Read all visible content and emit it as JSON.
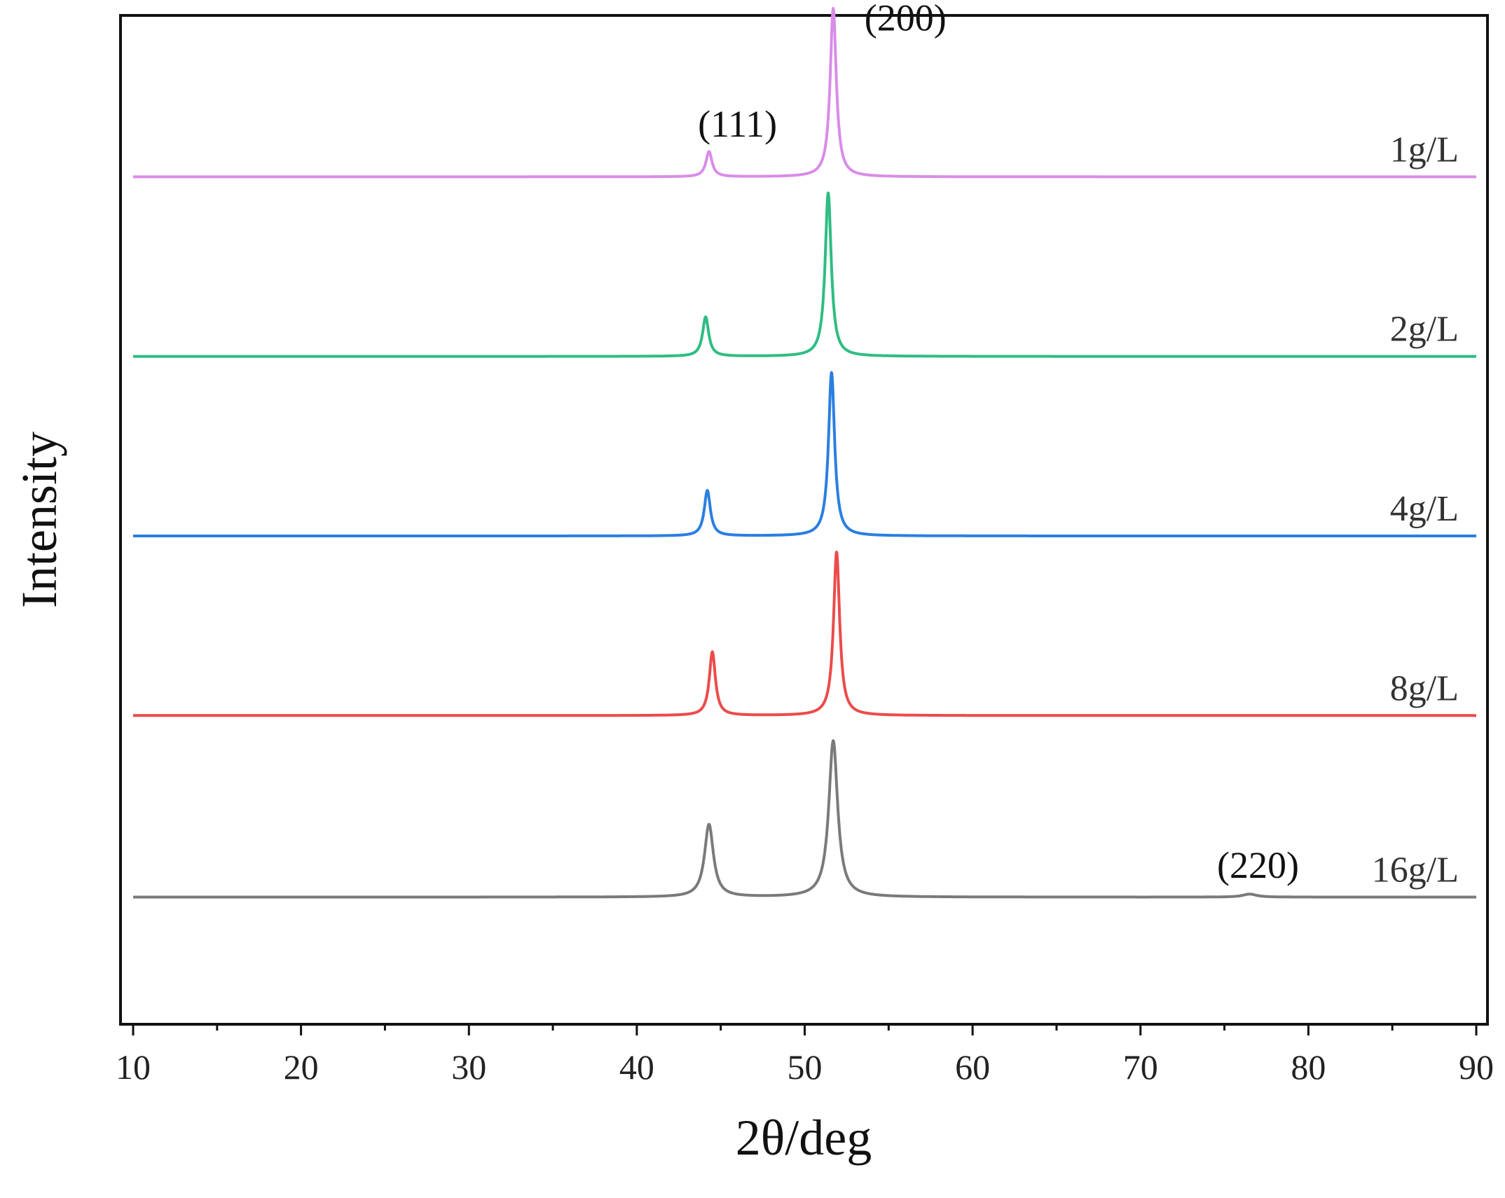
{
  "chart_data": {
    "type": "line",
    "xlabel": "2θ/deg",
    "ylabel": "Intensity",
    "xlim": [
      10,
      90
    ],
    "xticks": [
      10,
      20,
      30,
      40,
      50,
      60,
      70,
      80,
      90
    ],
    "x_minor_step": 5,
    "ylim": [
      0,
      1
    ],
    "grid": false,
    "y_ticks_shown": false,
    "stacked_offset": true,
    "series": [
      {
        "name": "1g/L",
        "color": "#d98ce8",
        "baseline": 0.84,
        "peaks": [
          {
            "x": 44.3,
            "h": 0.025,
            "w": 0.22
          },
          {
            "x": 51.7,
            "h": 0.167,
            "w": 0.22
          }
        ]
      },
      {
        "name": "2g/L",
        "color": "#2ebd82",
        "baseline": 0.662,
        "peaks": [
          {
            "x": 44.1,
            "h": 0.039,
            "w": 0.22
          },
          {
            "x": 51.4,
            "h": 0.162,
            "w": 0.22
          }
        ]
      },
      {
        "name": "4g/L",
        "color": "#2a7fe0",
        "baseline": 0.484,
        "peaks": [
          {
            "x": 44.2,
            "h": 0.045,
            "w": 0.22
          },
          {
            "x": 51.6,
            "h": 0.162,
            "w": 0.22
          }
        ]
      },
      {
        "name": "8g/L",
        "color": "#ec4b4b",
        "baseline": 0.306,
        "peaks": [
          {
            "x": 44.5,
            "h": 0.063,
            "w": 0.22
          },
          {
            "x": 51.9,
            "h": 0.162,
            "w": 0.22
          }
        ]
      },
      {
        "name": "16g/L",
        "color": "#7a7a7a",
        "baseline": 0.126,
        "peaks": [
          {
            "x": 44.3,
            "h": 0.072,
            "w": 0.32
          },
          {
            "x": 51.7,
            "h": 0.155,
            "w": 0.32
          },
          {
            "x": 76.5,
            "h": 0.003,
            "w": 0.5
          }
        ]
      }
    ],
    "annotations": [
      {
        "text": "(111)",
        "x": 46.0,
        "y": 0.88
      },
      {
        "text": "(200)",
        "x": 56.0,
        "y": 0.985
      },
      {
        "text": "(220)",
        "x": 77.0,
        "y": 0.145
      }
    ]
  }
}
